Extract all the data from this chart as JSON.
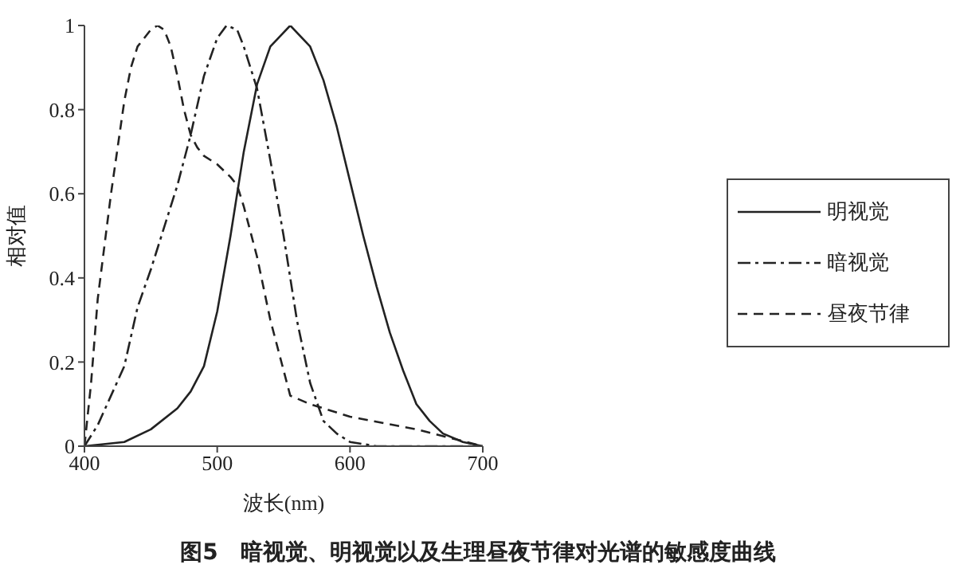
{
  "chart_data": {
    "type": "line",
    "title": "图5　暗视觉、明视觉以及生理昼夜节律对光谱的敏感度曲线",
    "xlabel": "波长(nm)",
    "ylabel": "相对值",
    "xlim": [
      400,
      700
    ],
    "xticks": [
      400,
      500,
      600,
      700
    ],
    "ylim": [
      0,
      1
    ],
    "yticks": [
      0,
      0.2,
      0.4,
      0.6,
      0.8,
      1
    ],
    "legend": "right",
    "marker": "none",
    "series": [
      {
        "name": "明视觉",
        "color": "#222222",
        "line_style": "solid",
        "x": [
          400,
          430,
          450,
          470,
          480,
          490,
          500,
          510,
          520,
          530,
          540,
          555,
          570,
          580,
          590,
          600,
          610,
          620,
          630,
          640,
          650,
          660,
          670,
          685,
          700
        ],
        "values": [
          0,
          0.01,
          0.04,
          0.09,
          0.13,
          0.19,
          0.32,
          0.5,
          0.7,
          0.86,
          0.95,
          1,
          0.95,
          0.87,
          0.76,
          0.63,
          0.5,
          0.38,
          0.27,
          0.18,
          0.1,
          0.06,
          0.03,
          0.01,
          0
        ]
      },
      {
        "name": "暗视觉",
        "color": "#222222",
        "line_style": "dashdot",
        "x": [
          400,
          410,
          420,
          430,
          440,
          450,
          460,
          470,
          480,
          490,
          500,
          507,
          515,
          520,
          530,
          540,
          550,
          560,
          570,
          580,
          590,
          600,
          620,
          700
        ],
        "values": [
          0,
          0.05,
          0.12,
          0.19,
          0.33,
          0.42,
          0.52,
          0.62,
          0.74,
          0.88,
          0.97,
          1,
          0.99,
          0.95,
          0.85,
          0.68,
          0.5,
          0.3,
          0.15,
          0.06,
          0.03,
          0.01,
          0,
          0
        ]
      },
      {
        "name": "昼夜节律",
        "color": "#222222",
        "line_style": "dashed",
        "x": [
          400,
          405,
          410,
          420,
          430,
          435,
          440,
          450,
          455,
          460,
          465,
          470,
          475,
          480,
          485,
          490,
          500,
          510,
          515,
          520,
          530,
          540,
          550,
          555,
          570,
          600,
          650,
          700
        ],
        "values": [
          0,
          0.15,
          0.35,
          0.6,
          0.82,
          0.9,
          0.95,
          0.99,
          1,
          0.99,
          0.95,
          0.88,
          0.8,
          0.74,
          0.71,
          0.69,
          0.67,
          0.64,
          0.62,
          0.57,
          0.45,
          0.3,
          0.18,
          0.12,
          0.1,
          0.07,
          0.04,
          0
        ]
      }
    ]
  }
}
